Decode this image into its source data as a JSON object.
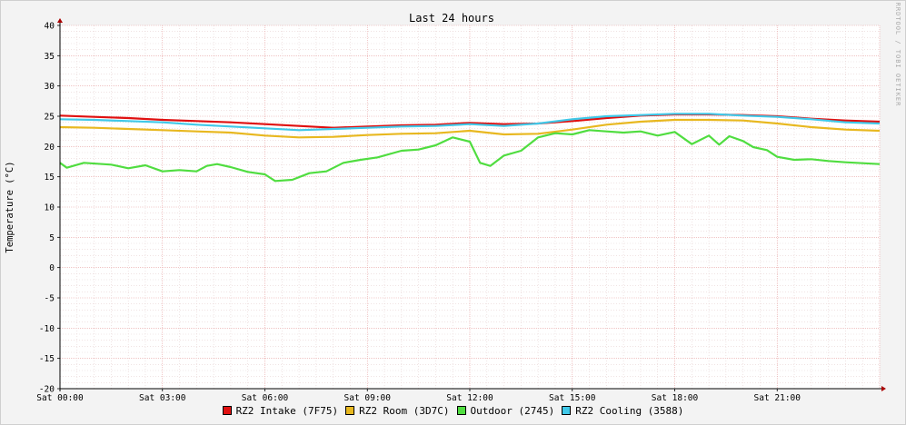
{
  "chart_data": {
    "type": "line",
    "title": "Last 24 hours",
    "ylabel": "Temperature (°C)",
    "watermark": "RRDTOOL / TOBI OETIKER",
    "ylim": [
      -20,
      40
    ],
    "yticks": [
      40,
      35,
      30,
      25,
      20,
      15,
      10,
      5,
      0,
      -5,
      -10,
      -15,
      -20
    ],
    "xlim_hours": [
      0,
      24
    ],
    "xticks": [
      {
        "hour": 0,
        "label": "Sat 00:00"
      },
      {
        "hour": 3,
        "label": "Sat 03:00"
      },
      {
        "hour": 6,
        "label": "Sat 06:00"
      },
      {
        "hour": 9,
        "label": "Sat 09:00"
      },
      {
        "hour": 12,
        "label": "Sat 12:00"
      },
      {
        "hour": 15,
        "label": "Sat 15:00"
      },
      {
        "hour": 18,
        "label": "Sat 18:00"
      },
      {
        "hour": 21,
        "label": "Sat 21:00"
      }
    ],
    "grid": true,
    "legend_position": "bottom",
    "series": [
      {
        "name": "RZ2 Intake (7F75)",
        "color": "#e01010",
        "x": [
          0,
          1,
          2,
          3,
          4,
          5,
          6,
          7,
          8,
          9,
          10,
          11,
          12,
          13,
          14,
          15,
          16,
          17,
          18,
          19,
          20,
          21,
          22,
          23,
          24
        ],
        "y": [
          25.1,
          24.9,
          24.7,
          24.4,
          24.2,
          24.0,
          23.7,
          23.4,
          23.1,
          23.3,
          23.5,
          23.6,
          23.9,
          23.7,
          23.8,
          24.2,
          24.7,
          25.1,
          25.3,
          25.3,
          25.2,
          25.0,
          24.6,
          24.3,
          24.1
        ]
      },
      {
        "name": "RZ2 Room (3D7C)",
        "color": "#e8b820",
        "x": [
          0,
          1,
          2,
          3,
          4,
          5,
          6,
          7,
          8,
          9,
          10,
          11,
          12,
          13,
          14,
          15,
          16,
          17,
          18,
          19,
          20,
          21,
          22,
          23,
          24
        ],
        "y": [
          23.2,
          23.1,
          22.9,
          22.7,
          22.5,
          22.3,
          21.8,
          21.5,
          21.6,
          21.9,
          22.1,
          22.2,
          22.6,
          22.0,
          22.1,
          22.8,
          23.6,
          24.1,
          24.4,
          24.4,
          24.3,
          23.8,
          23.2,
          22.8,
          22.6
        ]
      },
      {
        "name": "Outdoor (2745)",
        "color": "#50dd40",
        "x": [
          0,
          0.2,
          0.7,
          1.5,
          2.0,
          2.5,
          3.0,
          3.5,
          4.0,
          4.3,
          4.6,
          5.0,
          5.5,
          6.0,
          6.3,
          6.8,
          7.3,
          7.8,
          8.3,
          8.8,
          9.3,
          10,
          10.5,
          11,
          11.5,
          12,
          12.3,
          12.6,
          13.0,
          13.5,
          14.0,
          14.5,
          15.0,
          15.5,
          16,
          16.5,
          17,
          17.5,
          18,
          18.5,
          19,
          19.3,
          19.6,
          20,
          20.3,
          20.7,
          21,
          21.5,
          22,
          22.5,
          23,
          24
        ],
        "y": [
          17.3,
          16.5,
          17.3,
          17.0,
          16.4,
          16.9,
          15.9,
          16.1,
          15.9,
          16.8,
          17.1,
          16.6,
          15.8,
          15.4,
          14.3,
          14.5,
          15.6,
          15.9,
          17.3,
          17.8,
          18.2,
          19.3,
          19.5,
          20.2,
          21.5,
          20.8,
          17.3,
          16.8,
          18.5,
          19.3,
          21.5,
          22.2,
          22.0,
          22.7,
          22.5,
          22.3,
          22.5,
          21.8,
          22.4,
          20.4,
          21.8,
          20.3,
          21.7,
          20.9,
          19.9,
          19.4,
          18.3,
          17.8,
          17.9,
          17.6,
          17.4,
          17.1
        ]
      },
      {
        "name": "RZ2 Cooling (3588)",
        "color": "#40c8e8",
        "x": [
          0,
          1,
          2,
          3,
          4,
          5,
          6,
          7,
          8,
          9,
          10,
          11,
          12,
          13,
          14,
          15,
          16,
          17,
          18,
          19,
          20,
          21,
          22,
          23,
          24
        ],
        "y": [
          24.5,
          24.4,
          24.2,
          24.0,
          23.6,
          23.3,
          23.0,
          22.7,
          22.9,
          23.1,
          23.3,
          23.4,
          23.7,
          23.4,
          23.8,
          24.5,
          25.0,
          25.2,
          25.4,
          25.4,
          25.1,
          24.9,
          24.5,
          24.0,
          23.8
        ]
      }
    ]
  }
}
